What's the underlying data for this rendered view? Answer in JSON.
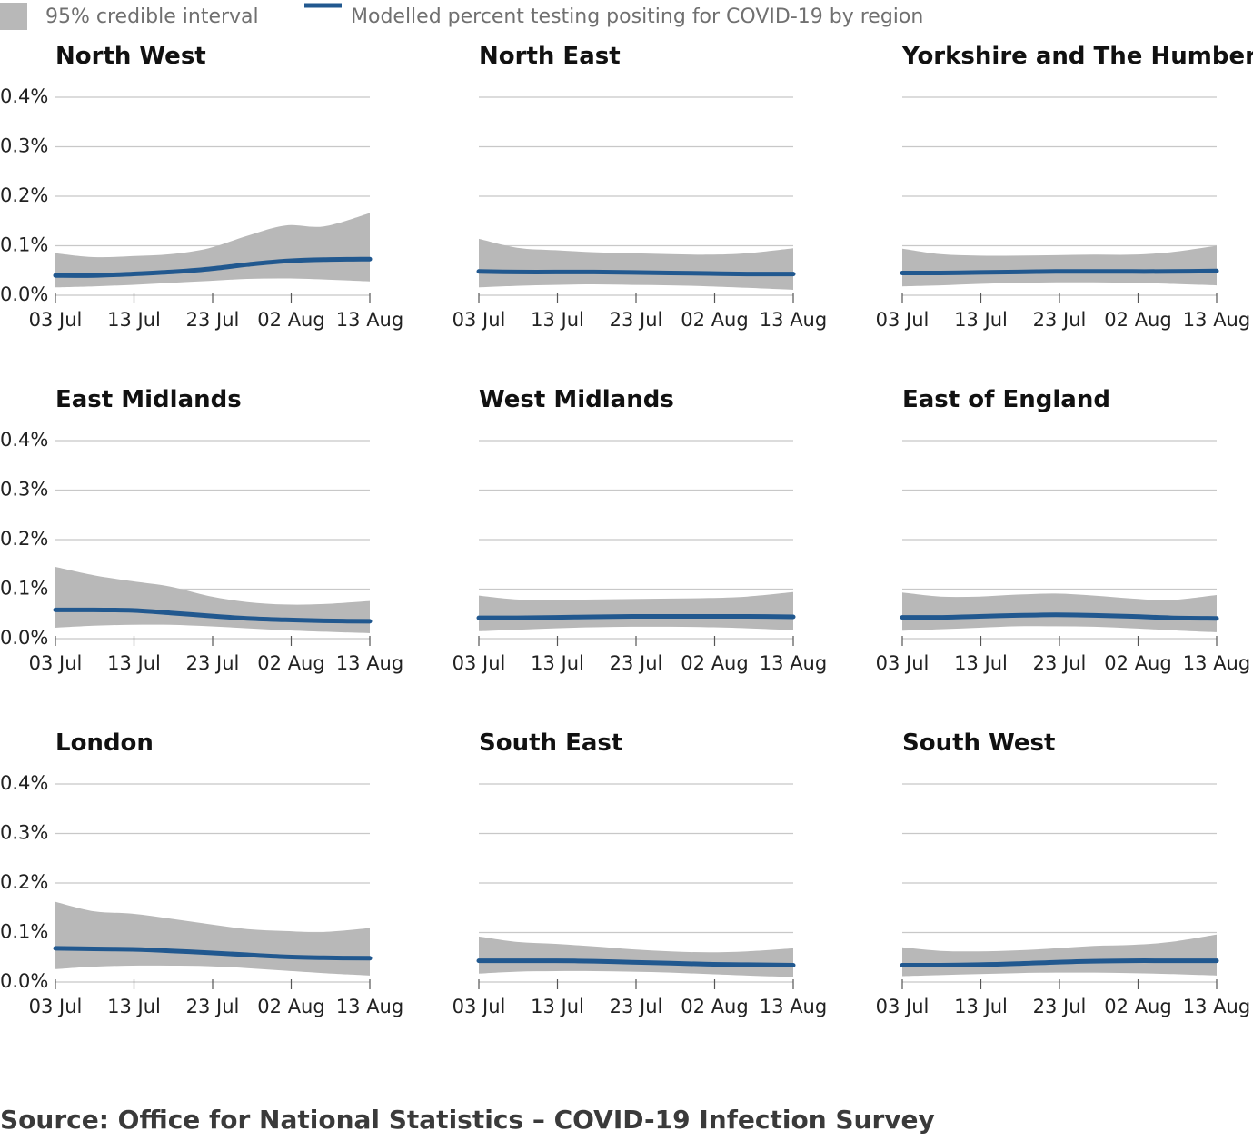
{
  "legend": {
    "band_label": "95% credible interval",
    "line_label": "Modelled percent testing positing for COVID-19 by region"
  },
  "source": "Source: Office for National Statistics – COVID-19 Infection Survey",
  "colors": {
    "band": "#b8b8b8",
    "line": "#21588f",
    "grid": "#c8c8c8"
  },
  "chart_data": {
    "type": "area",
    "x_ticks": [
      "03 Jul",
      "13 Jul",
      "23 Jul",
      "02 Aug",
      "13 Aug"
    ],
    "y_ticks": [
      "0.0%",
      "0.1%",
      "0.2%",
      "0.3%",
      "0.4%"
    ],
    "ylim": [
      0,
      0.4
    ],
    "x": [
      "2020-07-03",
      "2020-07-08",
      "2020-07-13",
      "2020-07-18",
      "2020-07-23",
      "2020-07-28",
      "2020-08-02",
      "2020-08-07",
      "2020-08-13"
    ],
    "panels": [
      {
        "title": "North West",
        "estimate": [
          0.04,
          0.04,
          0.043,
          0.047,
          0.053,
          0.062,
          0.069,
          0.072,
          0.073
        ],
        "lower": [
          0.016,
          0.018,
          0.021,
          0.025,
          0.029,
          0.033,
          0.034,
          0.032,
          0.028
        ],
        "upper": [
          0.085,
          0.077,
          0.079,
          0.083,
          0.095,
          0.12,
          0.141,
          0.139,
          0.166
        ]
      },
      {
        "title": "North East",
        "estimate": [
          0.048,
          0.047,
          0.047,
          0.047,
          0.046,
          0.045,
          0.044,
          0.043,
          0.043
        ],
        "lower": [
          0.016,
          0.019,
          0.021,
          0.022,
          0.021,
          0.02,
          0.018,
          0.015,
          0.011
        ],
        "upper": [
          0.114,
          0.096,
          0.091,
          0.087,
          0.085,
          0.083,
          0.082,
          0.085,
          0.095
        ]
      },
      {
        "title": "Yorkshire and The Humber",
        "estimate": [
          0.045,
          0.045,
          0.046,
          0.047,
          0.048,
          0.048,
          0.048,
          0.048,
          0.049
        ],
        "lower": [
          0.018,
          0.02,
          0.023,
          0.025,
          0.026,
          0.026,
          0.025,
          0.023,
          0.02
        ],
        "upper": [
          0.094,
          0.083,
          0.08,
          0.08,
          0.081,
          0.082,
          0.082,
          0.087,
          0.1
        ]
      },
      {
        "title": "East Midlands",
        "estimate": [
          0.058,
          0.058,
          0.057,
          0.052,
          0.046,
          0.041,
          0.038,
          0.036,
          0.035
        ],
        "lower": [
          0.022,
          0.026,
          0.028,
          0.028,
          0.025,
          0.021,
          0.017,
          0.014,
          0.011
        ],
        "upper": [
          0.145,
          0.128,
          0.116,
          0.105,
          0.086,
          0.074,
          0.069,
          0.07,
          0.076
        ]
      },
      {
        "title": "West Midlands",
        "estimate": [
          0.042,
          0.042,
          0.043,
          0.044,
          0.045,
          0.045,
          0.045,
          0.045,
          0.044
        ],
        "lower": [
          0.015,
          0.018,
          0.021,
          0.023,
          0.024,
          0.024,
          0.023,
          0.021,
          0.017
        ],
        "upper": [
          0.087,
          0.079,
          0.078,
          0.079,
          0.08,
          0.081,
          0.082,
          0.085,
          0.094
        ]
      },
      {
        "title": "East of England",
        "estimate": [
          0.043,
          0.043,
          0.045,
          0.047,
          0.048,
          0.047,
          0.045,
          0.042,
          0.041
        ],
        "lower": [
          0.016,
          0.019,
          0.022,
          0.025,
          0.025,
          0.024,
          0.021,
          0.017,
          0.013
        ],
        "upper": [
          0.093,
          0.085,
          0.085,
          0.089,
          0.091,
          0.087,
          0.081,
          0.078,
          0.088
        ]
      },
      {
        "title": "London",
        "estimate": [
          0.068,
          0.067,
          0.066,
          0.063,
          0.059,
          0.055,
          0.051,
          0.049,
          0.048
        ],
        "lower": [
          0.026,
          0.031,
          0.033,
          0.033,
          0.032,
          0.028,
          0.023,
          0.018,
          0.013
        ],
        "upper": [
          0.162,
          0.143,
          0.138,
          0.128,
          0.117,
          0.107,
          0.103,
          0.101,
          0.109
        ]
      },
      {
        "title": "South East",
        "estimate": [
          0.043,
          0.043,
          0.043,
          0.042,
          0.04,
          0.038,
          0.036,
          0.035,
          0.034
        ],
        "lower": [
          0.017,
          0.021,
          0.022,
          0.022,
          0.021,
          0.019,
          0.016,
          0.013,
          0.01
        ],
        "upper": [
          0.092,
          0.081,
          0.077,
          0.072,
          0.066,
          0.062,
          0.06,
          0.062,
          0.068
        ]
      },
      {
        "title": "South West",
        "estimate": [
          0.034,
          0.034,
          0.035,
          0.037,
          0.04,
          0.042,
          0.043,
          0.043,
          0.043
        ],
        "lower": [
          0.012,
          0.014,
          0.016,
          0.018,
          0.019,
          0.019,
          0.018,
          0.016,
          0.013
        ],
        "upper": [
          0.07,
          0.063,
          0.062,
          0.064,
          0.068,
          0.073,
          0.075,
          0.081,
          0.096
        ]
      }
    ]
  }
}
